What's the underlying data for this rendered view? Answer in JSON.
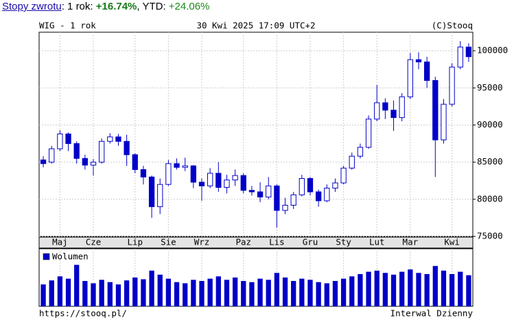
{
  "header": {
    "link": "Stopy zwrotu",
    "period_label": ": 1 rok: ",
    "period_return": "+16.74%",
    "ytd_label": ", YTD: ",
    "ytd_return": "+24.06%"
  },
  "chart_data": {
    "type": "candlestick",
    "title": "WIG - 1 rok",
    "subtitle": "30 Kwi 2025 17:09 UTC+2",
    "source": "(C)Stooq",
    "footer_left": "https://stooq.pl/",
    "footer_right": "Interwal Dzienny",
    "color": "#0000c8",
    "categories": [
      null,
      null,
      "Maj",
      null,
      null,
      null,
      "Cze",
      null,
      null,
      null,
      null,
      "Lip",
      null,
      null,
      null,
      "Sie",
      null,
      null,
      null,
      "Wrz",
      null,
      null,
      null,
      null,
      "Paz",
      null,
      null,
      null,
      "Lis",
      null,
      null,
      null,
      "Gru",
      null,
      null,
      null,
      "Sty",
      null,
      null,
      null,
      "Lut",
      null,
      null,
      null,
      "Mar",
      null,
      null,
      null,
      null,
      "Kwi",
      null,
      null
    ],
    "open": [
      85300,
      85000,
      86800,
      88800,
      87500,
      85500,
      84600,
      85000,
      87800,
      88400,
      87800,
      86000,
      84000,
      83000,
      79000,
      82000,
      84800,
      84300,
      84500,
      82300,
      81800,
      83500,
      81600,
      82600,
      83200,
      81200,
      81000,
      80300,
      81800,
      78500,
      79200,
      80600,
      82800,
      81000,
      79800,
      81500,
      82200,
      84200,
      85800,
      87000,
      90800,
      93000,
      92000,
      91000,
      93800,
      98800,
      98500,
      96000,
      88000,
      92800,
      97800,
      100500
    ],
    "high": [
      85800,
      87200,
      89300,
      89000,
      87800,
      86000,
      85400,
      88200,
      88900,
      88800,
      88700,
      86200,
      84500,
      83200,
      82800,
      85300,
      85500,
      85600,
      84600,
      82800,
      84200,
      85000,
      83300,
      84000,
      83500,
      81800,
      82300,
      83000,
      82000,
      80200,
      81000,
      83300,
      83000,
      81300,
      82000,
      82800,
      84500,
      86300,
      87500,
      91300,
      95400,
      93600,
      93300,
      94300,
      99700,
      99800,
      99200,
      96500,
      93500,
      98300,
      101300,
      101000
    ],
    "low": [
      84300,
      84800,
      86500,
      86500,
      84800,
      84000,
      83200,
      84800,
      87500,
      87200,
      84500,
      83500,
      82000,
      77500,
      78000,
      81800,
      84000,
      83800,
      81500,
      79800,
      81500,
      81000,
      80800,
      81800,
      80800,
      80500,
      79600,
      80000,
      76200,
      78000,
      78700,
      80400,
      80500,
      79000,
      79600,
      81000,
      82000,
      84000,
      85500,
      86800,
      90500,
      90800,
      89200,
      90500,
      93500,
      97500,
      95000,
      83000,
      87500,
      92500,
      97500,
      98500
    ],
    "close": [
      84800,
      86800,
      88800,
      87500,
      85500,
      84600,
      85000,
      87800,
      88400,
      87800,
      86000,
      84000,
      83000,
      79000,
      82000,
      84800,
      84300,
      84500,
      82300,
      81800,
      83500,
      81600,
      82600,
      83200,
      81200,
      81000,
      80300,
      81800,
      78500,
      79200,
      80600,
      82800,
      81000,
      79800,
      81500,
      82200,
      84200,
      85800,
      87000,
      90800,
      93000,
      92000,
      91000,
      93800,
      98800,
      98500,
      96000,
      88000,
      92800,
      97800,
      100500,
      99200
    ],
    "ylim": [
      75000,
      102500
    ],
    "yticks": [
      75000,
      80000,
      85000,
      90000,
      95000,
      100000
    ],
    "grid": true,
    "volume_name": "Wolumen",
    "volume": [
      38,
      45,
      52,
      48,
      72,
      44,
      40,
      46,
      42,
      38,
      45,
      50,
      47,
      62,
      55,
      48,
      42,
      40,
      46,
      44,
      48,
      52,
      46,
      50,
      44,
      42,
      48,
      46,
      58,
      50,
      44,
      48,
      46,
      42,
      40,
      44,
      48,
      52,
      56,
      60,
      62,
      58,
      55,
      60,
      64,
      58,
      56,
      70,
      62,
      56,
      60,
      54
    ],
    "volume_ylim": [
      0,
      100
    ]
  }
}
